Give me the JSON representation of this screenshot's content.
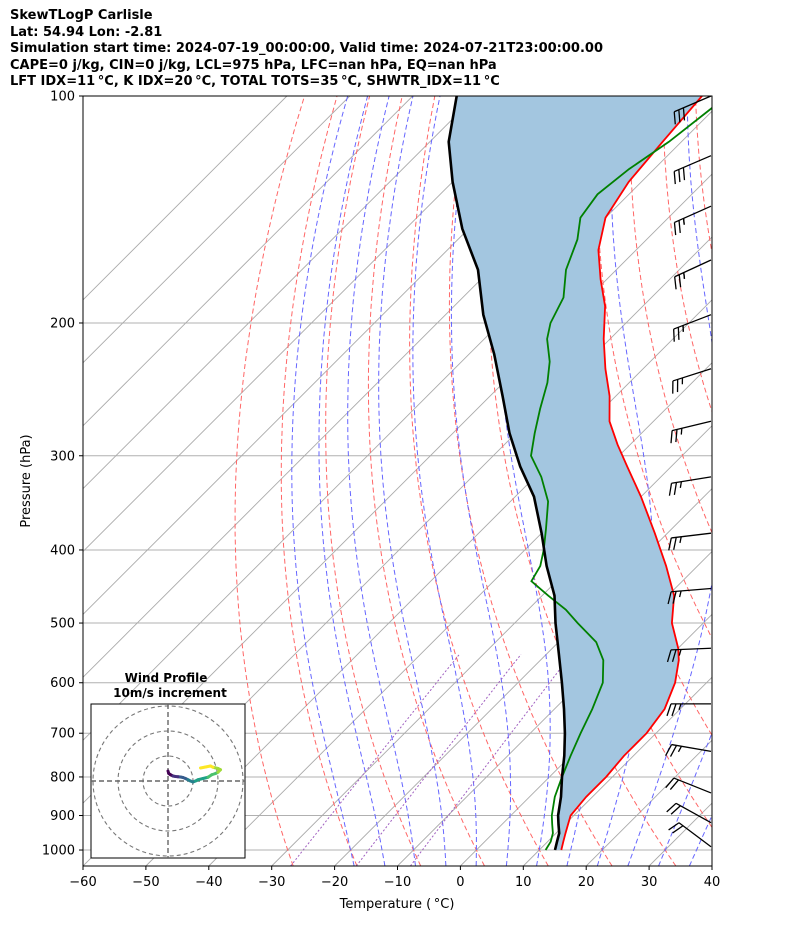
{
  "header": {
    "line1": "SkewTLogP Carlisle",
    "line2": "Lat: 54.94   Lon: -2.81",
    "line3": "Simulation start time: 2024-07-19_00:00:00, Valid time: 2024-07-21T23:00:00.00",
    "line4": "CAPE=0 j/kg, CIN=0 j/kg, LCL=975 hPa, LFC=nan hPa, EQ=nan hPa",
    "line5": "LFT IDX=11 °C, K IDX=20 °C, TOTAL TOTS=35 °C, SHWTR_IDX=11 °C"
  },
  "colors": {
    "temperature": "#ff0000",
    "dewpoint": "#008000",
    "parcel": "#000000",
    "cape_fill": "#a3c6e0",
    "dry_adiabat": "#ff6666",
    "moist_adiabat": "#6666ff",
    "isotherm": "#aaaaaa",
    "mixing_ratio": "#a060c0"
  },
  "chart_data": [
    {
      "type": "line",
      "title": "",
      "xlabel": "Temperature ( °C)",
      "ylabel": "Pressure (hPa)",
      "x_ticks": [
        "−60",
        "−50",
        "−40",
        "−30",
        "−20",
        "−10",
        "0",
        "10",
        "20",
        "30",
        "40"
      ],
      "y_ticks": [
        "100",
        "200",
        "300",
        "400",
        "500",
        "600",
        "700",
        "800",
        "900",
        "1000"
      ],
      "xlim": [
        -60,
        40
      ],
      "ylim": [
        1050,
        100
      ],
      "y_scale": "log",
      "skew": true,
      "grid": true,
      "series": [
        {
          "key": "temperature",
          "points": [
            [
              13.5,
              1000
            ],
            [
              12.5,
              975
            ],
            [
              11.5,
              950
            ],
            [
              10.5,
              925
            ],
            [
              9.5,
              900
            ],
            [
              9,
              850
            ],
            [
              9,
              800
            ],
            [
              8.5,
              750
            ],
            [
              8.5,
              700
            ],
            [
              7.5,
              650
            ],
            [
              5,
              600
            ],
            [
              2,
              560
            ],
            [
              0,
              540
            ],
            [
              -5,
              500
            ],
            [
              -9,
              460
            ],
            [
              -15,
              420
            ],
            [
              -22,
              380
            ],
            [
              -30,
              340
            ],
            [
              -37,
              310
            ],
            [
              -42,
              290
            ],
            [
              -47,
              270
            ],
            [
              -51,
              250
            ],
            [
              -56,
              230
            ],
            [
              -61,
              210
            ],
            [
              -66,
              190
            ],
            [
              -71,
              175
            ],
            [
              -76,
              160
            ],
            [
              -80,
              145
            ],
            [
              -82,
              130
            ],
            [
              -83,
              115
            ],
            [
              -84,
              100
            ]
          ]
        },
        {
          "key": "dewpoint",
          "points": [
            [
              11,
              1000
            ],
            [
              10.5,
              975
            ],
            [
              9.5,
              950
            ],
            [
              8,
              925
            ],
            [
              6.5,
              900
            ],
            [
              4,
              850
            ],
            [
              2,
              800
            ],
            [
              0,
              750
            ],
            [
              -2,
              700
            ],
            [
              -4,
              650
            ],
            [
              -6.5,
              600
            ],
            [
              -10,
              560
            ],
            [
              -14,
              530
            ],
            [
              -20,
              500
            ],
            [
              -24,
              480
            ],
            [
              -29,
              460
            ],
            [
              -34,
              440
            ],
            [
              -35,
              420
            ],
            [
              -37,
              400
            ],
            [
              -40,
              375
            ],
            [
              -44,
              345
            ],
            [
              -49,
              320
            ],
            [
              -54,
              300
            ],
            [
              -57,
              280
            ],
            [
              -60,
              260
            ],
            [
              -63,
              240
            ],
            [
              -66,
              225
            ],
            [
              -70,
              210
            ],
            [
              -72,
              200
            ],
            [
              -74,
              185
            ],
            [
              -78,
              170
            ],
            [
              -81,
              155
            ],
            [
              -84,
              145
            ],
            [
              -85,
              135
            ],
            [
              -84,
              125
            ],
            [
              -82,
              115
            ],
            [
              -80,
              100
            ]
          ]
        },
        {
          "key": "parcel",
          "points": [
            [
              12.5,
              1000
            ],
            [
              11.5,
              975
            ],
            [
              10.5,
              950
            ],
            [
              9,
              925
            ],
            [
              7.5,
              900
            ],
            [
              5,
              850
            ],
            [
              2,
              800
            ],
            [
              -1,
              750
            ],
            [
              -4.5,
              700
            ],
            [
              -8.5,
              650
            ],
            [
              -13,
              600
            ],
            [
              -18,
              550
            ],
            [
              -23.5,
              500
            ],
            [
              -28,
              460
            ],
            [
              -34,
              420
            ],
            [
              -40,
              380
            ],
            [
              -47,
              340
            ],
            [
              -54,
              310
            ],
            [
              -61,
              280
            ],
            [
              -68,
              250
            ],
            [
              -76,
              220
            ],
            [
              -84,
              195
            ],
            [
              -92,
              170
            ],
            [
              -101,
              150
            ],
            [
              -110,
              130
            ],
            [
              -117,
              115
            ],
            [
              -123,
              100
            ]
          ]
        }
      ]
    },
    {
      "type": "line",
      "title": "Wind Profile",
      "subtitle": "10m/s increment",
      "rings": [
        10,
        20,
        30
      ],
      "points": [
        [
          0,
          4
        ],
        [
          0.3,
          3
        ],
        [
          1,
          2.5
        ],
        [
          2,
          2
        ],
        [
          3,
          1.8
        ],
        [
          4,
          1.7
        ],
        [
          5,
          1.6
        ],
        [
          6,
          1.4
        ],
        [
          7,
          1
        ],
        [
          8,
          0.5
        ],
        [
          9,
          0
        ],
        [
          10,
          -0.4
        ],
        [
          11,
          0
        ],
        [
          12,
          0.5
        ],
        [
          14,
          1
        ],
        [
          16,
          1.5
        ],
        [
          17.5,
          2.5
        ],
        [
          19,
          3
        ],
        [
          20,
          3.5
        ],
        [
          21,
          4.5
        ],
        [
          20,
          5
        ],
        [
          18,
          5.5
        ],
        [
          17,
          6
        ],
        [
          15,
          5.6
        ],
        [
          13,
          5.2
        ]
      ]
    }
  ],
  "wind_barbs": [
    {
      "p": 100,
      "u": -28,
      "v": -12
    },
    {
      "p": 120,
      "u": -28,
      "v": -12
    },
    {
      "p": 140,
      "u": -27,
      "v": -12
    },
    {
      "p": 165,
      "u": -26,
      "v": -12
    },
    {
      "p": 195,
      "u": -26,
      "v": -10
    },
    {
      "p": 230,
      "u": -25,
      "v": -8
    },
    {
      "p": 270,
      "u": -25,
      "v": -6
    },
    {
      "p": 320,
      "u": -25,
      "v": -4
    },
    {
      "p": 380,
      "u": -25,
      "v": -3
    },
    {
      "p": 450,
      "u": -25,
      "v": -2
    },
    {
      "p": 540,
      "u": -25,
      "v": -1
    },
    {
      "p": 640,
      "u": -25,
      "v": 0
    },
    {
      "p": 740,
      "u": -23,
      "v": 4
    },
    {
      "p": 840,
      "u": -20,
      "v": 8
    },
    {
      "p": 920,
      "u": -18,
      "v": 10
    },
    {
      "p": 990,
      "u": -16,
      "v": 12
    }
  ]
}
